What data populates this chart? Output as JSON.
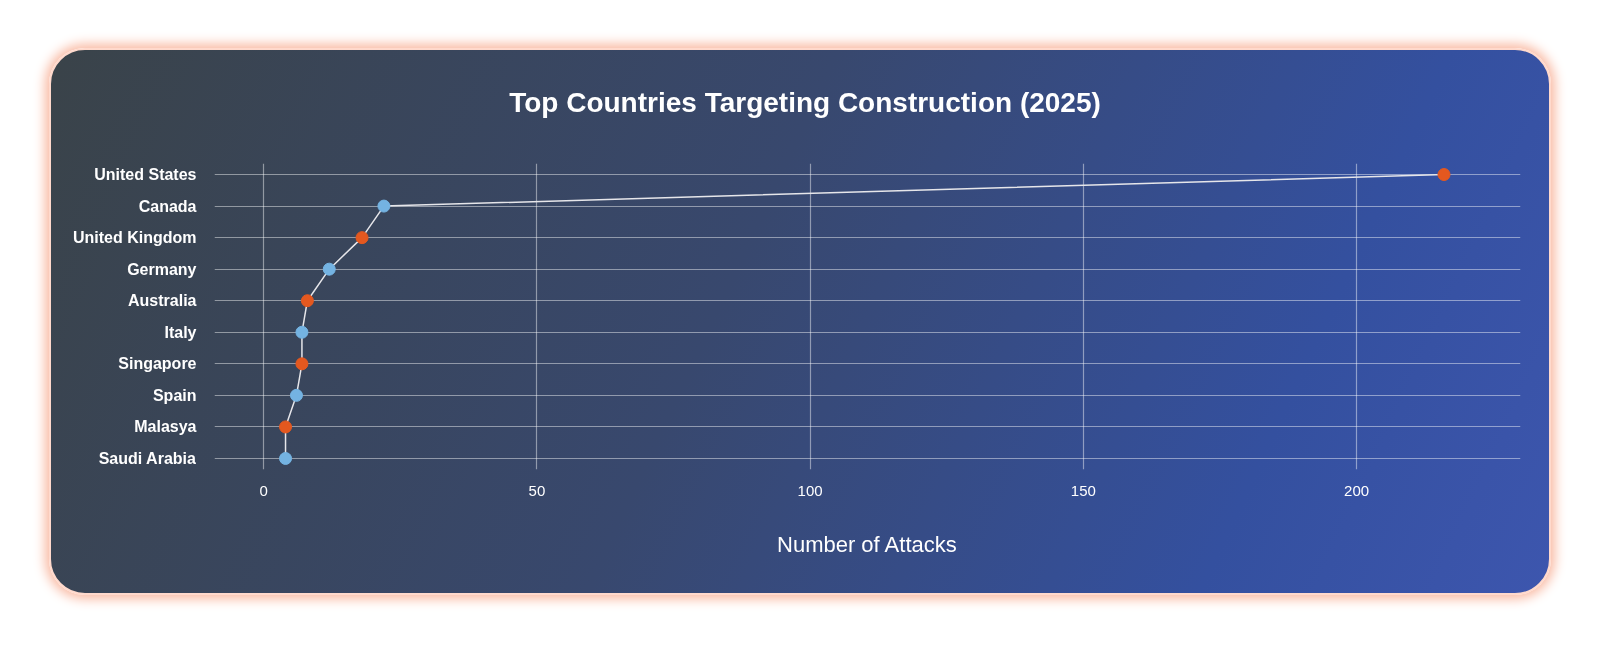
{
  "chart_data": {
    "type": "line",
    "orientation": "horizontal",
    "title": "Top Countries Targeting Construction (2025)",
    "xlabel": "Number of Attacks",
    "categories": [
      "United States",
      "Canada",
      "United Kingdom",
      "Germany",
      "Australia",
      "Italy",
      "Singapore",
      "Spain",
      "Malasya",
      "Saudi Arabia"
    ],
    "values": [
      216,
      22,
      18,
      12,
      8,
      7,
      7,
      6,
      4,
      4
    ],
    "color": "#e6e6ea",
    "colors": [
      "#e4581f",
      "#74b3e2",
      "#e4581f",
      "#74b3e2",
      "#e4581f",
      "#74b3e2",
      "#e4581f",
      "#74b3e2",
      "#e4581f",
      "#74b3e2"
    ],
    "xlim": [
      -9,
      230
    ],
    "xticks": [
      0,
      50,
      100,
      150,
      200
    ],
    "grid": true,
    "marker": "circle",
    "line_style": "solid"
  }
}
